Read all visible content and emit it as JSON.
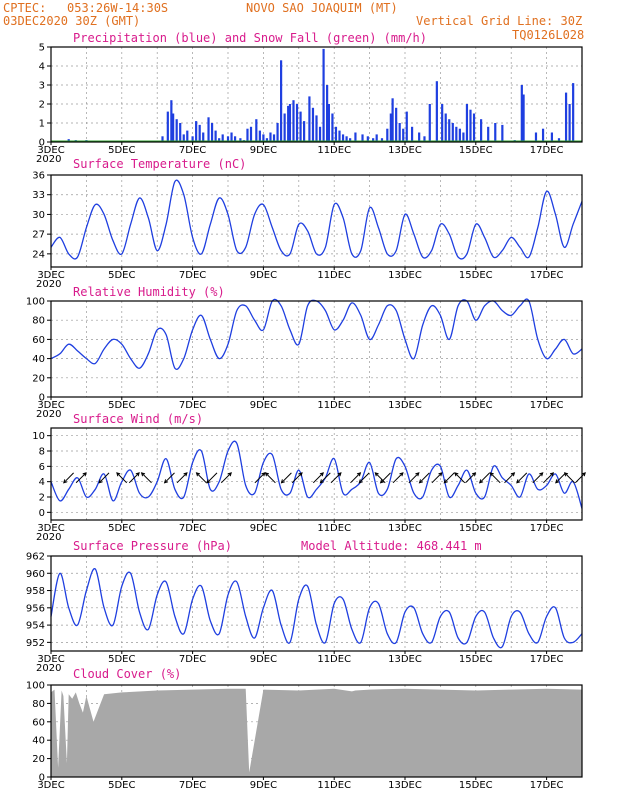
{
  "header": {
    "source": "CPTEC:",
    "coords": "053:26W-14:30S",
    "location": "NOVO SAO JOAQUIM (MT)",
    "run": "03DEC2020 30Z (GMT)",
    "grid_note": "Vertical Grid Line: 30Z",
    "model_code": "TQ0126L028"
  },
  "x_ticks": [
    "3DEC",
    "5DEC",
    "7DEC",
    "9DEC",
    "11DEC",
    "13DEC",
    "15DEC",
    "17DEC"
  ],
  "year_label": "2020",
  "colors": {
    "header": "#e07020",
    "panel_title": "#d81b8c",
    "line": "#1f3fe0",
    "precip": "#1f3fe0",
    "snow": "#2ca02c",
    "cloud": "#a8a8a8"
  },
  "chart_data": [
    {
      "type": "bar",
      "title": "Precipitation (blue) and Snow Fall (green) (mm/h)",
      "ylim": [
        0,
        5
      ],
      "yticks": [
        0,
        1,
        2,
        3,
        4,
        5
      ],
      "xlim": [
        0,
        15
      ],
      "series": [
        {
          "name": "Precipitation",
          "x": [
            0.5,
            0.7,
            1.0,
            3.15,
            3.3,
            3.4,
            3.45,
            3.55,
            3.65,
            3.75,
            3.85,
            4.0,
            4.1,
            4.2,
            4.3,
            4.45,
            4.55,
            4.65,
            4.75,
            4.85,
            5.0,
            5.1,
            5.2,
            5.35,
            5.45,
            5.55,
            5.65,
            5.8,
            5.9,
            6.0,
            6.1,
            6.2,
            6.3,
            6.4,
            6.5,
            6.6,
            6.7,
            6.75,
            6.85,
            6.95,
            7.05,
            7.15,
            7.3,
            7.4,
            7.5,
            7.6,
            7.7,
            7.8,
            7.85,
            7.95,
            8.05,
            8.15,
            8.25,
            8.35,
            8.45,
            8.6,
            8.8,
            8.95,
            9.1,
            9.2,
            9.35,
            9.5,
            9.6,
            9.65,
            9.75,
            9.85,
            9.95,
            10.05,
            10.2,
            10.4,
            10.55,
            10.7,
            10.9,
            11.05,
            11.15,
            11.25,
            11.35,
            11.45,
            11.55,
            11.65,
            11.75,
            11.85,
            11.95,
            12.15,
            12.35,
            12.55,
            12.75,
            13.1,
            13.3,
            13.35,
            13.7,
            13.9,
            14.15,
            14.35,
            14.55,
            14.65,
            14.75
          ],
          "values": [
            0.15,
            0.1,
            0.1,
            0.3,
            1.6,
            2.2,
            1.5,
            1.2,
            1.0,
            0.4,
            0.6,
            0.3,
            1.1,
            0.9,
            0.5,
            1.3,
            1.0,
            0.6,
            0.2,
            0.4,
            0.3,
            0.5,
            0.3,
            0.2,
            0.1,
            0.7,
            0.8,
            1.2,
            0.6,
            0.4,
            0.2,
            0.5,
            0.4,
            1.0,
            4.3,
            1.5,
            1.9,
            2.0,
            2.2,
            2.0,
            1.6,
            1.1,
            2.4,
            1.8,
            1.4,
            0.8,
            4.9,
            3.0,
            2.0,
            1.5,
            0.8,
            0.6,
            0.4,
            0.3,
            0.2,
            0.5,
            0.4,
            0.3,
            0.2,
            0.4,
            0.2,
            0.7,
            1.5,
            2.3,
            1.8,
            1.0,
            0.7,
            1.6,
            0.8,
            0.5,
            0.3,
            2.0,
            3.2,
            2.0,
            1.5,
            1.2,
            1.0,
            0.8,
            0.7,
            0.5,
            2.0,
            1.7,
            1.5,
            1.2,
            0.8,
            1.0,
            0.9,
            0.1,
            3.0,
            2.5,
            0.5,
            0.7,
            0.5,
            0.2,
            2.6,
            2.0,
            3.1
          ]
        },
        {
          "name": "Snow Fall",
          "x": [
            0,
            15
          ],
          "values": [
            0,
            0
          ]
        }
      ]
    },
    {
      "type": "line",
      "title": "Surface Temperature (nC)",
      "ylim": [
        22,
        36
      ],
      "yticks": [
        24,
        27,
        30,
        33,
        36
      ],
      "xlim": [
        0,
        15
      ],
      "series": [
        {
          "name": "",
          "x": [
            0,
            0.25,
            0.5,
            0.75,
            1.0,
            1.25,
            1.5,
            1.75,
            2.0,
            2.25,
            2.5,
            2.75,
            3.0,
            3.25,
            3.5,
            3.75,
            4.0,
            4.25,
            4.5,
            4.75,
            5.0,
            5.25,
            5.5,
            5.75,
            6.0,
            6.25,
            6.5,
            6.75,
            7.0,
            7.25,
            7.5,
            7.75,
            8.0,
            8.25,
            8.5,
            8.75,
            9.0,
            9.25,
            9.5,
            9.75,
            10.0,
            10.25,
            10.5,
            10.75,
            11.0,
            11.25,
            11.5,
            11.75,
            12.0,
            12.25,
            12.5,
            12.75,
            13.0,
            13.25,
            13.5,
            13.75,
            14.0,
            14.25,
            14.5,
            14.75,
            15.0
          ],
          "values": [
            25.0,
            26.5,
            24.0,
            23.5,
            28.0,
            31.5,
            30.0,
            26.0,
            24.0,
            28.5,
            32.5,
            29.5,
            24.5,
            28.5,
            35.0,
            33.0,
            26.5,
            24.0,
            28.5,
            32.5,
            30.0,
            24.5,
            25.0,
            30.0,
            31.5,
            28.0,
            24.5,
            24.0,
            28.5,
            27.5,
            24.0,
            25.0,
            31.5,
            29.5,
            24.0,
            24.5,
            31.0,
            28.0,
            24.0,
            24.5,
            30.0,
            27.0,
            23.5,
            24.5,
            28.5,
            27.0,
            23.5,
            24.0,
            28.5,
            26.5,
            23.5,
            24.5,
            26.5,
            25.0,
            23.5,
            28.0,
            33.5,
            30.0,
            25.0,
            28.5,
            32.0
          ]
        }
      ]
    },
    {
      "type": "line",
      "title": "Relative Humidity (%)",
      "ylim": [
        0,
        100
      ],
      "yticks": [
        0,
        20,
        40,
        60,
        80,
        100
      ],
      "xlim": [
        0,
        15
      ],
      "series": [
        {
          "name": "",
          "x": [
            0,
            0.25,
            0.5,
            0.75,
            1.0,
            1.25,
            1.5,
            1.75,
            2.0,
            2.25,
            2.5,
            2.75,
            3.0,
            3.25,
            3.5,
            3.75,
            4.0,
            4.25,
            4.5,
            4.75,
            5.0,
            5.25,
            5.5,
            5.75,
            6.0,
            6.25,
            6.5,
            6.75,
            7.0,
            7.25,
            7.5,
            7.75,
            8.0,
            8.25,
            8.5,
            8.75,
            9.0,
            9.25,
            9.5,
            9.75,
            10.0,
            10.25,
            10.5,
            10.75,
            11.0,
            11.25,
            11.5,
            11.75,
            12.0,
            12.25,
            12.5,
            12.75,
            13.0,
            13.25,
            13.5,
            13.75,
            14.0,
            14.25,
            14.5,
            14.75,
            15.0
          ],
          "values": [
            40.0,
            45.0,
            55.0,
            48.0,
            40.0,
            35.0,
            50.0,
            60.0,
            55.0,
            40.0,
            30.0,
            45.0,
            70.0,
            65.0,
            30.0,
            40.0,
            70.0,
            85.0,
            60.0,
            40.0,
            55.0,
            90.0,
            95.0,
            80.0,
            70.0,
            100.0,
            95.0,
            70.0,
            55.0,
            95.0,
            100.0,
            90.0,
            70.0,
            80.0,
            98.0,
            85.0,
            60.0,
            75.0,
            95.0,
            90.0,
            60.0,
            40.0,
            75.0,
            95.0,
            85.0,
            60.0,
            95.0,
            100.0,
            80.0,
            95.0,
            100.0,
            90.0,
            85.0,
            95.0,
            100.0,
            60.0,
            40.0,
            50.0,
            60.0,
            45.0,
            50.0
          ]
        }
      ]
    },
    {
      "type": "line",
      "title": "Surface Wind (m/s)",
      "ylim": [
        -1,
        11
      ],
      "yticks": [
        0,
        2,
        4,
        6,
        8,
        10
      ],
      "xlim": [
        0,
        15
      ],
      "series": [
        {
          "name": "",
          "x": [
            0,
            0.25,
            0.5,
            0.75,
            1.0,
            1.25,
            1.5,
            1.75,
            2.0,
            2.25,
            2.5,
            2.75,
            3.0,
            3.25,
            3.5,
            3.75,
            4.0,
            4.25,
            4.5,
            4.75,
            5.0,
            5.25,
            5.5,
            5.75,
            6.0,
            6.25,
            6.5,
            6.75,
            7.0,
            7.25,
            7.5,
            7.75,
            8.0,
            8.25,
            8.5,
            8.75,
            9.0,
            9.25,
            9.5,
            9.75,
            10.0,
            10.25,
            10.5,
            10.75,
            11.0,
            11.25,
            11.5,
            11.75,
            12.0,
            12.25,
            12.5,
            12.75,
            13.0,
            13.25,
            13.5,
            13.75,
            14.0,
            14.25,
            14.5,
            14.75,
            15.0
          ],
          "values": [
            4.0,
            1.5,
            3.0,
            4.5,
            2.0,
            3.0,
            5.0,
            1.5,
            4.0,
            5.5,
            2.5,
            2.0,
            4.0,
            7.0,
            3.0,
            2.0,
            6.5,
            8.0,
            3.0,
            4.0,
            8.0,
            9.0,
            3.5,
            2.5,
            6.5,
            7.5,
            3.0,
            2.5,
            5.5,
            2.0,
            3.0,
            4.5,
            7.0,
            2.5,
            3.0,
            4.0,
            6.5,
            2.5,
            3.0,
            7.0,
            6.0,
            2.5,
            2.0,
            5.5,
            6.0,
            2.0,
            3.5,
            5.5,
            2.5,
            2.0,
            6.0,
            4.5,
            3.5,
            2.0,
            5.0,
            3.0,
            3.5,
            5.0,
            2.5,
            4.0,
            0.5
          ]
        }
      ],
      "vectors": {
        "x": [
          0.5,
          0.85,
          1.5,
          2.0,
          2.35,
          2.7,
          3.35,
          3.7,
          4.25,
          4.55,
          4.95,
          5.9,
          6.2,
          6.65,
          6.95,
          7.55,
          7.75,
          8.05,
          8.6,
          8.85,
          9.3,
          9.45,
          9.8,
          10.25,
          10.55,
          10.9,
          11.25,
          11.55,
          11.85,
          12.25,
          12.55,
          12.95,
          13.3,
          13.75,
          14.05,
          14.4,
          14.65,
          14.95
        ],
        "directions": [
          "SW",
          "NE",
          "SW",
          "NW",
          "NE",
          "NW",
          "SW",
          "NE",
          "NW",
          "SW",
          "NE",
          "NE",
          "NW",
          "SW",
          "NE",
          "NE",
          "SW",
          "NE",
          "NE",
          "SW",
          "NW",
          "SW",
          "NE",
          "NE",
          "SW",
          "NE",
          "SW",
          "NW",
          "NE",
          "SW",
          "NW",
          "NE",
          "SW",
          "NE",
          "NE",
          "SW",
          "NW",
          "NE"
        ]
      }
    },
    {
      "type": "line",
      "title": "Surface Pressure (hPa)",
      "annotation": "Model Altitude: 468.441 m",
      "ylim": [
        951,
        962
      ],
      "yticks": [
        952,
        954,
        956,
        958,
        960,
        962
      ],
      "xlim": [
        0,
        15
      ],
      "series": [
        {
          "name": "",
          "x": [
            0,
            0.25,
            0.5,
            0.75,
            1.0,
            1.25,
            1.5,
            1.75,
            2.0,
            2.25,
            2.5,
            2.75,
            3.0,
            3.25,
            3.5,
            3.75,
            4.0,
            4.25,
            4.5,
            4.75,
            5.0,
            5.25,
            5.5,
            5.75,
            6.0,
            6.25,
            6.5,
            6.75,
            7.0,
            7.25,
            7.5,
            7.75,
            8.0,
            8.25,
            8.5,
            8.75,
            9.0,
            9.25,
            9.5,
            9.75,
            10.0,
            10.25,
            10.5,
            10.75,
            11.0,
            11.25,
            11.5,
            11.75,
            12.0,
            12.25,
            12.5,
            12.75,
            13.0,
            13.25,
            13.5,
            13.75,
            14.0,
            14.25,
            14.5,
            14.75,
            15.0
          ],
          "values": [
            955.0,
            960.0,
            956.0,
            954.0,
            958.0,
            960.5,
            956.0,
            954.0,
            958.5,
            960.0,
            955.5,
            953.5,
            957.5,
            959.0,
            955.0,
            953.0,
            957.0,
            958.5,
            954.5,
            953.0,
            957.5,
            959.0,
            955.0,
            952.5,
            956.0,
            958.0,
            954.0,
            952.0,
            957.0,
            958.5,
            954.0,
            952.0,
            956.5,
            957.0,
            953.5,
            952.0,
            956.0,
            956.5,
            953.0,
            952.0,
            955.5,
            956.0,
            953.0,
            952.0,
            955.0,
            955.5,
            952.5,
            952.0,
            955.0,
            955.5,
            952.5,
            951.5,
            955.0,
            955.5,
            953.0,
            952.0,
            955.0,
            956.0,
            952.5,
            952.0,
            953.0
          ]
        }
      ]
    },
    {
      "type": "area",
      "title": "Cloud Cover (%)",
      "ylim": [
        0,
        100
      ],
      "yticks": [
        0,
        20,
        40,
        60,
        80,
        100
      ],
      "xlim": [
        0,
        15
      ],
      "series": [
        {
          "name": "",
          "x": [
            0,
            0.1,
            0.2,
            0.3,
            0.35,
            0.45,
            0.5,
            0.6,
            0.7,
            0.8,
            0.9,
            1.0,
            1.2,
            1.5,
            2.0,
            3.0,
            4.0,
            5.0,
            5.5,
            5.6,
            6.0,
            7.0,
            8.0,
            8.5,
            8.6,
            9.0,
            10.0,
            11.0,
            12.0,
            13.0,
            14.0,
            15.0
          ],
          "values": [
            92,
            95,
            10,
            94,
            88,
            15,
            90,
            85,
            92,
            80,
            70,
            88,
            60,
            90,
            92,
            94,
            95,
            96,
            96,
            5,
            95,
            94,
            96,
            93,
            94,
            95,
            96,
            95,
            94,
            95,
            96,
            95
          ]
        }
      ]
    }
  ]
}
